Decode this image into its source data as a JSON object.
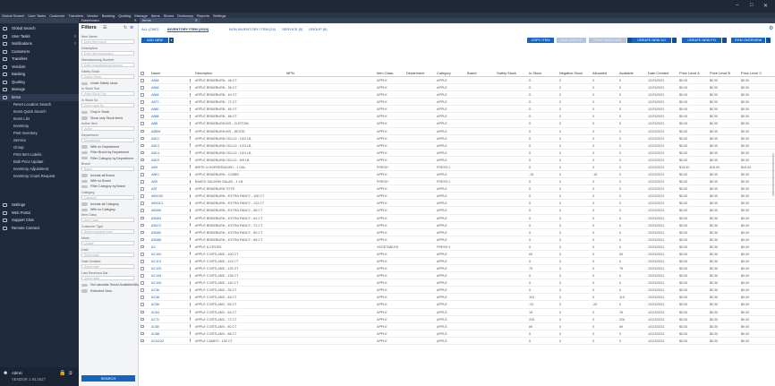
{
  "app": {
    "menu": [
      "Global Search",
      "User Tasks",
      "Customer",
      "Transfers",
      "Vendor",
      "Banking",
      "Quoting",
      "Manage",
      "Items",
      "Stores",
      "Dictionary",
      "Reports",
      "Settings"
    ],
    "doc_tabs": [
      "Dashboard",
      "Items"
    ],
    "window_controls": [
      "minimize",
      "maximize",
      "close"
    ]
  },
  "sidebar": {
    "items": [
      {
        "label": "Global Search",
        "icon": "search-icon",
        "count": ""
      },
      {
        "label": "User Tasks",
        "icon": "clipboard-icon",
        "count": "0"
      },
      {
        "label": "Notifications",
        "icon": "bell-icon",
        "count": "0"
      },
      {
        "label": "Customers",
        "icon": "people-icon",
        "count": ""
      },
      {
        "label": "Transfers",
        "icon": "transfer-icon",
        "count": ""
      },
      {
        "label": "Vendors",
        "icon": "truck-icon",
        "count": ""
      },
      {
        "label": "Banking",
        "icon": "bank-icon",
        "count": ""
      },
      {
        "label": "Quoting",
        "icon": "quote-icon",
        "count": ""
      },
      {
        "label": "Manage",
        "icon": "manage-icon",
        "count": ""
      },
      {
        "label": "Items",
        "icon": "tag-icon",
        "count": ""
      }
    ],
    "subitems": [
      "Reset Location Search",
      "Items Quick Search",
      "Items List",
      "Inventory",
      "Post Inventory",
      "Service",
      "Group",
      "Print Item Labels",
      "Bulk Price Update",
      "Inventory Adjustment",
      "Inventory Count Request"
    ],
    "bottom_items": [
      {
        "label": "Settings",
        "icon": "gear-icon"
      },
      {
        "label": "Web Portal",
        "icon": "globe-icon"
      },
      {
        "label": "Support Chat",
        "icon": "chat-icon"
      },
      {
        "label": "Remote Connect",
        "icon": "monitor-icon"
      }
    ],
    "user": {
      "name": "Admin",
      "version": "VENDOR 1.84.2517"
    }
  },
  "filters": {
    "title": "Filters",
    "fields": [
      {
        "label": "Item Name",
        "placeholder": "Enter item name"
      },
      {
        "label": "Description",
        "placeholder": "Enter item description"
      },
      {
        "label": "Manufacturing Number",
        "placeholder": "Enter manufacturing number"
      },
      {
        "label": "Safety Stock",
        "placeholder": "Safety Stock"
      }
    ],
    "toggle1": "Under Safety stock",
    "in_stock_label": "In Stock Sub",
    "in_stock_ph": "Enter Stock Sub",
    "in_stock_label2": "In Stock So",
    "in_stock_ph2": "Enter stock So",
    "toggle2": "Only in Stock",
    "toggle3": "Show only Stock items",
    "active_label": "Active Item",
    "active_value": "Active",
    "dept_label": "Department",
    "dept_value": "Department",
    "toggle4": "With no Department",
    "toggle5": "Filter Brand by Department",
    "toggle6": "Filter Category by Department",
    "brand_label": "Brand",
    "brand_value": "Brand",
    "toggle7": "Include all Brand",
    "toggle8": "With no Brand",
    "toggle9": "Filter Category by Brand",
    "category_label": "Category",
    "category_value": "Category",
    "toggle10": "Include all Category",
    "toggle11": "With no Category",
    "item_class_label": "Item Class",
    "item_class_value": "Item Class",
    "customer_type_label": "Customer Type",
    "customer_type_value": "Select customer type",
    "mode_label": "Mode",
    "mode_value": "Update",
    "date_label": "Date",
    "date_ph": "Select date",
    "date_created_label": "Date Created",
    "date_created_ph": "Select date",
    "last_received_label": "Last Received Dat",
    "last_received_ph": "Select date",
    "toggle12": "Not calculate Stock/ Available/Allocated",
    "toggle13": "Extended View",
    "search_label": "SEARCH"
  },
  "main": {
    "tabs": [
      "ALL (2587)",
      "INVENTORY ITEM (2522)",
      "NON INVENTORY ITEM (24)",
      "SERVICE (5)",
      "GROUP (8)"
    ],
    "new_button": "ADD NEW",
    "actions": [
      "COPY ITEM",
      "ADD CREATE",
      "PRINT BARCODE",
      "CREATE NEW SO",
      "CREATE NEW PO",
      "ITEM OVERVIEW"
    ],
    "columns": [
      "Name",
      "Description",
      "MPN",
      "Item Class",
      "Department",
      "Category",
      "Brand",
      "Safety Stock",
      "In Stock",
      "Negative Stock",
      "Allocated",
      "Available",
      "Date Created",
      "Price Level A",
      "Price Level B",
      "Price Level C"
    ],
    "rows": [
      [
        "A848",
        "APPLE BRAEBURN - 48 CT",
        "",
        "APPLE",
        "",
        "APPLE",
        "",
        "",
        "0",
        "0",
        "0",
        "0",
        "12/23/2021",
        "$0.00",
        "$0.00",
        "$0.00"
      ],
      [
        "A856",
        "APPLE BRAEBURN - 56 CT",
        "",
        "APPLE",
        "",
        "APPLE",
        "",
        "",
        "0",
        "0",
        "0",
        "0",
        "12/23/2021",
        "$0.00",
        "$0.00",
        "$0.00"
      ],
      [
        "A864",
        "APPLE BRAEBURN - 64 CT",
        "",
        "APPLE",
        "",
        "APPLE",
        "",
        "",
        "0",
        "0",
        "0",
        "0",
        "12/23/2021",
        "$0.00",
        "$0.00",
        "$0.00"
      ],
      [
        "A872",
        "APPLE BRAEBURN - 72 CT",
        "",
        "APPLE",
        "",
        "APPLE",
        "",
        "",
        "0",
        "0",
        "0",
        "0",
        "12/23/2021",
        "$0.00",
        "$0.00",
        "$0.00"
      ],
      [
        "A880",
        "APPLE BRAEBURN - 80 CT",
        "",
        "APPLE",
        "",
        "APPLE",
        "",
        "",
        "0",
        "0",
        "0",
        "0",
        "12/23/2021",
        "$0.00",
        "$0.00",
        "$0.00"
      ],
      [
        "A888",
        "APPLE BRAEBURN - 88 CT",
        "",
        "APPLE",
        "",
        "APPLE",
        "",
        "",
        "0",
        "0",
        "0",
        "0",
        "12/23/2021",
        "$0.00",
        "$0.00",
        "$0.00"
      ],
      [
        "A8B",
        "APPLE BRAEBURN B/S - CUSTOM",
        "",
        "APPLE",
        "",
        "APPLE",
        "",
        "",
        "0",
        "0",
        "0",
        "0",
        "12/23/2021",
        "$0.00",
        "$0.00",
        "$0.00"
      ],
      [
        "A8BW",
        "APPLE BRAEBURN B/S - WOOD",
        "",
        "APPLE",
        "",
        "APPLE",
        "",
        "",
        "0",
        "0",
        "0",
        "0",
        "12/23/2021",
        "$0.00",
        "$0.00",
        "$0.00"
      ],
      [
        "A8C2",
        "APPLE BRAEBURN CELLO - 10/2 LB",
        "",
        "APPLE",
        "",
        "APPLE",
        "",
        "",
        "0",
        "0",
        "0",
        "0",
        "12/23/2021",
        "$0.00",
        "$0.00",
        "$0.00"
      ],
      [
        "A8C3",
        "APPLE BRAEBURN CELLO - 12/3 LB",
        "",
        "APPLE",
        "",
        "APPLE",
        "",
        "",
        "0",
        "0",
        "0",
        "0",
        "12/23/2021",
        "$0.00",
        "$0.00",
        "$0.00"
      ],
      [
        "A8C4",
        "APPLE BRAEBURN CELLO - 10/4 LB",
        "",
        "APPLE",
        "",
        "APPLE",
        "",
        "",
        "0",
        "0",
        "0",
        "0",
        "12/23/2021",
        "$0.00",
        "$0.00",
        "$0.00"
      ],
      [
        "A8C5",
        "APPLE BRAEBURN CELLO - 8/5 LB",
        "",
        "APPLE",
        "",
        "APPLE",
        "",
        "",
        "0",
        "0",
        "0",
        "0",
        "12/23/2021",
        "$0.00",
        "$0.00",
        "$0.00"
      ],
      [
        "A8H",
        "BRITE-N HORSERADISH - 1 GAL",
        "",
        "FRESH",
        "",
        "FRESH 1",
        "",
        "",
        "0",
        "0",
        "0",
        "0",
        "12/23/2021",
        "$15.00",
        "$15.00",
        "$15.00"
      ],
      [
        "A8K1",
        "APPLE BRAEBURN - COMBI",
        "",
        "APPLE",
        "",
        "APPLE",
        "",
        "",
        "-15",
        "0",
        "-15",
        "0",
        "12/23/2021",
        "$0.00",
        "$0.00",
        "$0.00"
      ],
      [
        "A8S",
        "BAKED SALMON SALAD - 1 LB",
        "",
        "FRESH",
        "",
        "FRESH 1",
        "",
        "",
        "0",
        "0",
        "0",
        "0",
        "12/23/2021",
        "$0.00",
        "$0.00",
        "$0.00"
      ],
      [
        "A8T",
        "APPLE BRAEBURN TOTE",
        "",
        "APPLE",
        "",
        "APPLE",
        "",
        "",
        "0",
        "0",
        "0",
        "0",
        "12/23/2021",
        "$0.00",
        "$0.00",
        "$0.00"
      ],
      [
        "AB4100",
        "APPLE BRAEBURN - EXTRA FANCY - 100 CT",
        "",
        "APPLE",
        "",
        "APPLE",
        "",
        "",
        "0",
        "0",
        "0",
        "0",
        "12/23/2021",
        "$0.00",
        "$0.00",
        "$0.00"
      ],
      [
        "AB4113",
        "APPLE BRAEBURN - EXTRA FANCY - 113 CT",
        "",
        "APPLE",
        "",
        "APPLE",
        "",
        "",
        "0",
        "0",
        "0",
        "0",
        "12/23/2021",
        "$0.00",
        "$0.00",
        "$0.00"
      ],
      [
        "AB456",
        "APPLE BRAEBURN - EXTRA FANCY - 56 CT",
        "",
        "APPLE",
        "",
        "APPLE",
        "",
        "",
        "0",
        "0",
        "0",
        "0",
        "12/23/2021",
        "$0.00",
        "$0.00",
        "$0.00"
      ],
      [
        "AB464",
        "APPLE BRAEBURN - EXTRA FANCY - 64 CT",
        "",
        "APPLE",
        "",
        "APPLE",
        "",
        "",
        "0",
        "0",
        "0",
        "0",
        "12/23/2021",
        "$0.00",
        "$0.00",
        "$0.00"
      ],
      [
        "AB472",
        "APPLE BRAEBURN - EXTRA FANCY - 72 CT",
        "",
        "APPLE",
        "",
        "APPLE",
        "",
        "",
        "0",
        "0",
        "0",
        "0",
        "12/23/2021",
        "$0.00",
        "$0.00",
        "$0.00"
      ],
      [
        "AB480",
        "APPLE BRAEBURN - EXTRA FANCY - 80 CT",
        "",
        "APPLE",
        "",
        "APPLE",
        "",
        "",
        "0",
        "0",
        "0",
        "0",
        "12/23/2021",
        "$0.00",
        "$0.00",
        "$0.00"
      ],
      [
        "AB488",
        "APPLE BRAEBURN - EXTRA FANCY - 88 CT",
        "",
        "APPLE",
        "",
        "APPLE",
        "",
        "",
        "0",
        "0",
        "0",
        "0",
        "12/23/2021",
        "$0.00",
        "$0.00",
        "$0.00"
      ],
      [
        "AC",
        "APPLE & CROSS",
        "",
        "VEGETABLES",
        "",
        "FRESH 1",
        "",
        "",
        "0",
        "0",
        "0",
        "0",
        "12/23/2021",
        "$0.00",
        "$0.00",
        "$0.00"
      ],
      [
        "AC100",
        "APPLE CORTLAND - 100 CT",
        "",
        "APPLE",
        "",
        "APPLE",
        "",
        "",
        "60",
        "0",
        "0",
        "60",
        "12/23/2021",
        "$0.00",
        "$0.00",
        "$0.00"
      ],
      [
        "AC113",
        "APPLE CORTLAND - 113 CT",
        "",
        "APPLE",
        "",
        "APPLE",
        "",
        "",
        "0",
        "0",
        "0",
        "0",
        "12/23/2021",
        "$0.00",
        "$0.00",
        "$0.00"
      ],
      [
        "AC125",
        "APPLE CORTLAND - 125 CT",
        "",
        "APPLE",
        "",
        "APPLE",
        "",
        "",
        "75",
        "0",
        "0",
        "75",
        "12/23/2021",
        "$0.00",
        "$0.00",
        "$0.00"
      ],
      [
        "AC138",
        "APPLE CORTLAND - 138 CT",
        "",
        "APPLE",
        "",
        "APPLE",
        "",
        "",
        "0",
        "0",
        "0",
        "0",
        "12/23/2021",
        "$0.00",
        "$0.00",
        "$0.00"
      ],
      [
        "AC140",
        "APPLE CORTLAND - 140 CT",
        "",
        "APPLE",
        "",
        "APPLE",
        "",
        "",
        "0",
        "0",
        "0",
        "0",
        "12/23/2021",
        "$0.00",
        "$0.00",
        "$0.00"
      ],
      [
        "AC36",
        "APPLE CORTLAND - 36 CT",
        "",
        "APPLE",
        "",
        "APPLE",
        "",
        "",
        "0",
        "0",
        "0",
        "0",
        "12/23/2021",
        "$0.00",
        "$0.00",
        "$0.00"
      ],
      [
        "AC48",
        "APPLE CORTLAND - 48 CT",
        "",
        "APPLE",
        "",
        "APPLE",
        "",
        "",
        "110",
        "0",
        "0",
        "110",
        "12/23/2021",
        "$0.00",
        "$0.00",
        "$0.00"
      ],
      [
        "AC56",
        "APPLE CORTLAND - 56 CT",
        "",
        "APPLE",
        "",
        "APPLE",
        "",
        "",
        "-20",
        "0",
        "-20",
        "0",
        "12/23/2021",
        "$0.00",
        "$0.00",
        "$0.00"
      ],
      [
        "AC64",
        "APPLE CORTLAND - 64 CT",
        "",
        "APPLE",
        "",
        "APPLE",
        "",
        "",
        "15",
        "0",
        "0",
        "15",
        "12/23/2021",
        "$0.00",
        "$0.00",
        "$0.00"
      ],
      [
        "AC72",
        "APPLE CORTLAND - 72 CT",
        "",
        "APPLE",
        "",
        "APPLE",
        "",
        "",
        "226",
        "0",
        "0",
        "226",
        "12/23/2021",
        "$0.00",
        "$0.00",
        "$0.00"
      ],
      [
        "AC80",
        "APPLE CORTLAND - 80 CT",
        "",
        "APPLE",
        "",
        "APPLE",
        "",
        "",
        "60",
        "0",
        "0",
        "60",
        "12/23/2021",
        "$0.00",
        "$0.00",
        "$0.00"
      ],
      [
        "AC88",
        "APPLE CORTLAND - 88 CT",
        "",
        "APPLE",
        "",
        "APPLE",
        "",
        "",
        "0",
        "0",
        "0",
        "0",
        "12/23/2021",
        "$0.00",
        "$0.00",
        "$0.00"
      ],
      [
        "ACA100",
        "APPLE CAMEO - 100 CT",
        "",
        "APPLE",
        "",
        "APPLE",
        "",
        "",
        "0",
        "0",
        "0",
        "0",
        "12/23/2021",
        "$0.00",
        "$0.00",
        "$0.00"
      ]
    ]
  }
}
